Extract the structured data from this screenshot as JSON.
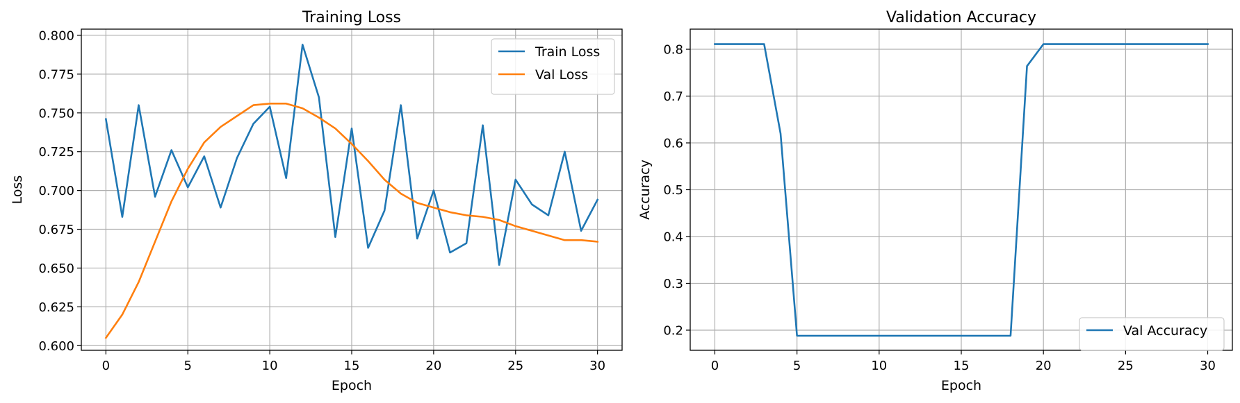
{
  "chart_data": [
    {
      "type": "line",
      "title": "Training Loss",
      "xlabel": "Epoch",
      "ylabel": "Loss",
      "xlim": [
        -1.5,
        31.5
      ],
      "ylim": [
        0.597,
        0.804
      ],
      "xticks": [
        0,
        5,
        10,
        15,
        20,
        25,
        30
      ],
      "yticks": [
        0.6,
        0.625,
        0.65,
        0.675,
        0.7,
        0.725,
        0.75,
        0.775,
        0.8
      ],
      "ytick_labels": [
        "0.600",
        "0.625",
        "0.650",
        "0.675",
        "0.700",
        "0.725",
        "0.750",
        "0.775",
        "0.800"
      ],
      "grid": true,
      "legend": "upper right",
      "x": [
        0,
        1,
        2,
        3,
        4,
        5,
        6,
        7,
        8,
        9,
        10,
        11,
        12,
        13,
        14,
        15,
        16,
        17,
        18,
        19,
        20,
        21,
        22,
        23,
        24,
        25,
        26,
        27,
        28,
        29,
        30
      ],
      "series": [
        {
          "name": "Train Loss",
          "color": "#1f77b4",
          "values": [
            0.746,
            0.683,
            0.755,
            0.696,
            0.726,
            0.702,
            0.722,
            0.689,
            0.721,
            0.743,
            0.754,
            0.708,
            0.794,
            0.76,
            0.67,
            0.74,
            0.663,
            0.687,
            0.755,
            0.669,
            0.7,
            0.66,
            0.666,
            0.742,
            0.652,
            0.707,
            0.691,
            0.684,
            0.725,
            0.674,
            0.694
          ]
        },
        {
          "name": "Val Loss",
          "color": "#ff7f0e",
          "values": [
            0.605,
            0.62,
            0.641,
            0.667,
            0.693,
            0.714,
            0.731,
            0.741,
            0.748,
            0.755,
            0.756,
            0.756,
            0.753,
            0.747,
            0.74,
            0.73,
            0.719,
            0.707,
            0.698,
            0.692,
            0.689,
            0.686,
            0.684,
            0.683,
            0.681,
            0.677,
            0.674,
            0.671,
            0.668,
            0.668,
            0.667
          ]
        }
      ]
    },
    {
      "type": "line",
      "title": "Validation Accuracy",
      "xlabel": "Epoch",
      "ylabel": "Accuracy",
      "xlim": [
        -1.5,
        31.5
      ],
      "ylim": [
        0.157,
        0.843
      ],
      "xticks": [
        0,
        5,
        10,
        15,
        20,
        25,
        30
      ],
      "yticks": [
        0.2,
        0.3,
        0.4,
        0.5,
        0.6,
        0.7,
        0.8
      ],
      "ytick_labels": [
        "0.2",
        "0.3",
        "0.4",
        "0.5",
        "0.6",
        "0.7",
        "0.8"
      ],
      "grid": true,
      "legend": "lower right",
      "x": [
        0,
        1,
        2,
        3,
        4,
        5,
        6,
        7,
        8,
        9,
        10,
        11,
        12,
        13,
        14,
        15,
        16,
        17,
        18,
        19,
        20,
        21,
        22,
        23,
        24,
        25,
        26,
        27,
        28,
        29,
        30
      ],
      "series": [
        {
          "name": "Val Accuracy",
          "color": "#1f77b4",
          "values": [
            0.811,
            0.811,
            0.811,
            0.811,
            0.62,
            0.188,
            0.188,
            0.188,
            0.188,
            0.188,
            0.188,
            0.188,
            0.188,
            0.188,
            0.188,
            0.188,
            0.188,
            0.188,
            0.188,
            0.764,
            0.811,
            0.811,
            0.811,
            0.811,
            0.811,
            0.811,
            0.811,
            0.811,
            0.811,
            0.811,
            0.811
          ]
        }
      ]
    }
  ]
}
